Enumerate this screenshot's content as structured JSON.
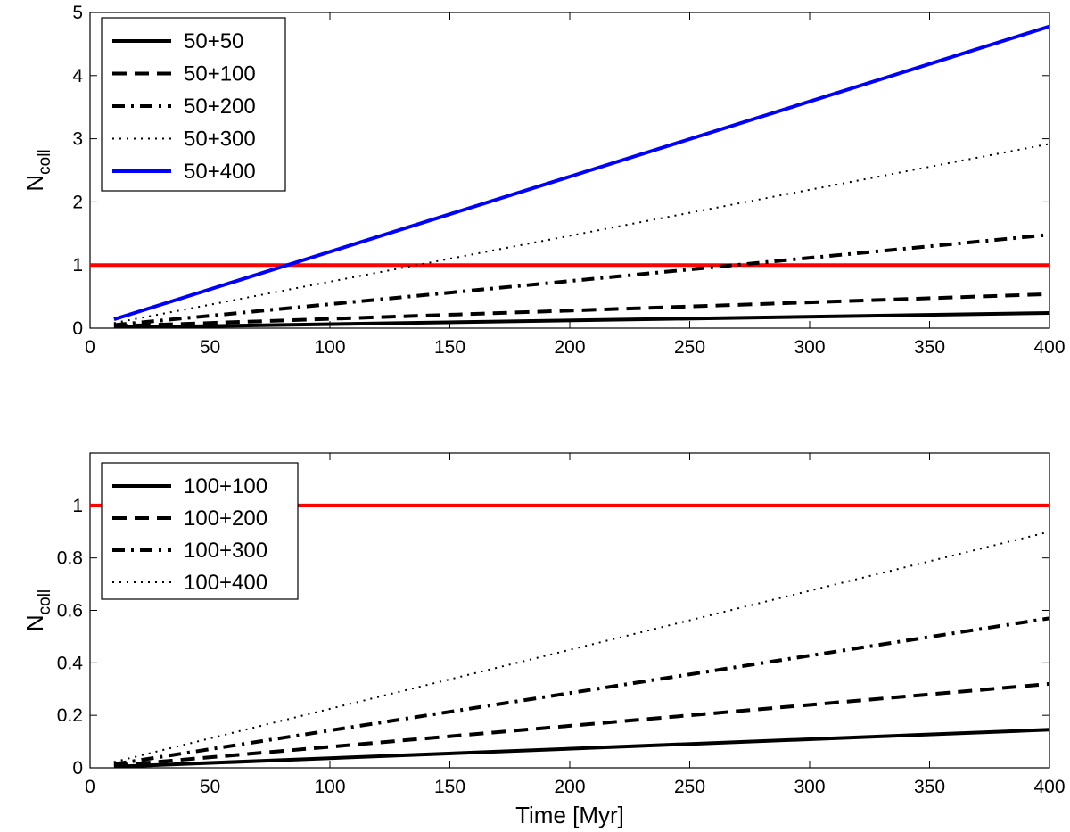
{
  "chart_data": [
    {
      "type": "line",
      "panel": "top",
      "title": "",
      "xlabel": "",
      "ylabel": "N",
      "ylabel_sub": "coll",
      "xlim": [
        0,
        400
      ],
      "ylim": [
        0,
        5
      ],
      "xticks": [
        "0",
        "50",
        "100",
        "150",
        "200",
        "250",
        "300",
        "350",
        "400"
      ],
      "yticks": [
        "0",
        "1",
        "2",
        "3",
        "4",
        "5"
      ],
      "legend_position": "top-left",
      "reference_line": {
        "y": 1,
        "color": "#ff0000"
      },
      "series": [
        {
          "name": "50+50",
          "style": "solid",
          "color": "#000000",
          "x": [
            10,
            400
          ],
          "y": [
            0.01,
            0.24
          ]
        },
        {
          "name": "50+100",
          "style": "dashed",
          "color": "#000000",
          "x": [
            10,
            400
          ],
          "y": [
            0.03,
            0.54
          ]
        },
        {
          "name": "50+200",
          "style": "dashdot",
          "color": "#000000",
          "x": [
            10,
            400
          ],
          "y": [
            0.05,
            1.48
          ]
        },
        {
          "name": "50+300",
          "style": "dotted",
          "color": "#000000",
          "x": [
            10,
            400
          ],
          "y": [
            0.08,
            2.92
          ]
        },
        {
          "name": "50+400",
          "style": "solid",
          "color": "#0000ff",
          "x": [
            10,
            400
          ],
          "y": [
            0.14,
            4.78
          ]
        }
      ]
    },
    {
      "type": "line",
      "panel": "bottom",
      "title": "",
      "xlabel": "Time [Myr]",
      "ylabel": "N",
      "ylabel_sub": "coll",
      "xlim": [
        0,
        400
      ],
      "ylim": [
        0,
        1.2
      ],
      "xticks": [
        "0",
        "50",
        "100",
        "150",
        "200",
        "250",
        "300",
        "350",
        "400"
      ],
      "yticks": [
        "0",
        "0.2",
        "0.4",
        "0.6",
        "0.8",
        "1"
      ],
      "legend_position": "top-left",
      "reference_line": {
        "y": 1,
        "color": "#ff0000"
      },
      "series": [
        {
          "name": "100+100",
          "style": "solid",
          "color": "#000000",
          "x": [
            10,
            400
          ],
          "y": [
            0.004,
            0.145
          ]
        },
        {
          "name": "100+200",
          "style": "dashed",
          "color": "#000000",
          "x": [
            10,
            400
          ],
          "y": [
            0.008,
            0.32
          ]
        },
        {
          "name": "100+300",
          "style": "dashdot",
          "color": "#000000",
          "x": [
            10,
            400
          ],
          "y": [
            0.014,
            0.57
          ]
        },
        {
          "name": "100+400",
          "style": "dotted",
          "color": "#000000",
          "x": [
            10,
            400
          ],
          "y": [
            0.022,
            0.9
          ]
        }
      ]
    }
  ]
}
